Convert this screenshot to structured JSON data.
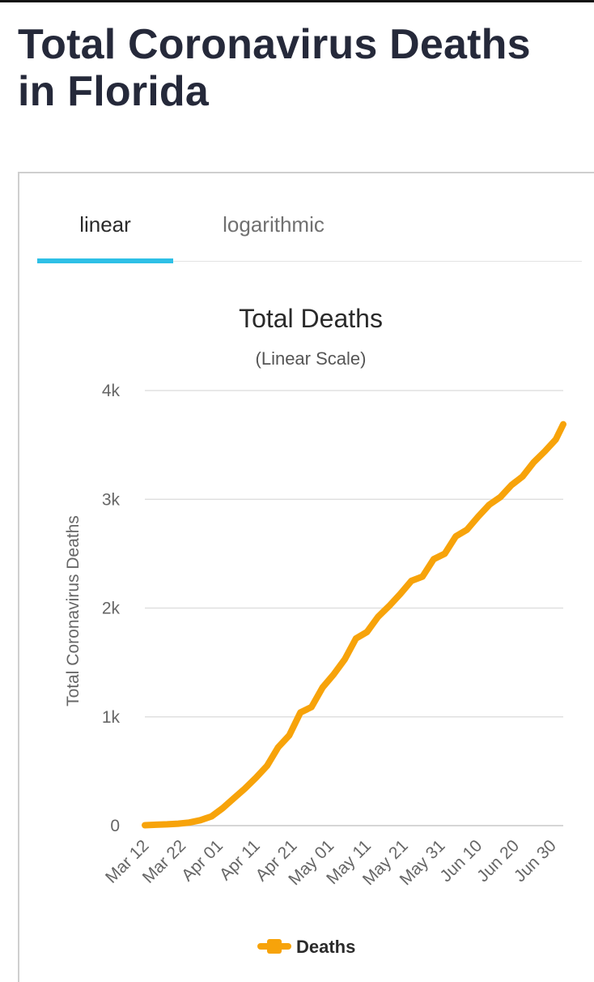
{
  "page": {
    "title": "Total Coronavirus Deaths in Florida"
  },
  "tabs": [
    {
      "label": "linear",
      "active": true
    },
    {
      "label": "logarithmic",
      "active": false
    }
  ],
  "colors": {
    "accent": "#2ec0e6",
    "series": "#f7a30a",
    "grid": "#e0e0e0"
  },
  "chart_data": {
    "type": "line",
    "title": "Total Deaths",
    "subtitle": "(Linear Scale)",
    "xlabel": "",
    "ylabel": "Total Coronavirus Deaths",
    "ylim": [
      0,
      4000
    ],
    "yticks": [
      {
        "value": 0,
        "label": "0"
      },
      {
        "value": 1000,
        "label": "1k"
      },
      {
        "value": 2000,
        "label": "2k"
      },
      {
        "value": 3000,
        "label": "3k"
      },
      {
        "value": 4000,
        "label": "4k"
      }
    ],
    "xticks": [
      "Mar 12",
      "Mar 22",
      "Apr 01",
      "Apr 11",
      "Apr 21",
      "May 01",
      "May 11",
      "May 21",
      "May 31",
      "Jun 10",
      "Jun 20",
      "Jun 30"
    ],
    "grid": true,
    "legend": "bottom-center",
    "series": [
      {
        "name": "Deaths",
        "x": [
          "Mar 12",
          "Mar 15",
          "Mar 18",
          "Mar 21",
          "Mar 24",
          "Mar 27",
          "Mar 30",
          "Apr 02",
          "Apr 05",
          "Apr 08",
          "Apr 11",
          "Apr 14",
          "Apr 17",
          "Apr 20",
          "Apr 23",
          "Apr 26",
          "Apr 29",
          "May 02",
          "May 05",
          "May 08",
          "May 11",
          "May 14",
          "May 17",
          "May 20",
          "May 23",
          "May 26",
          "May 29",
          "Jun 01",
          "Jun 04",
          "Jun 07",
          "Jun 10",
          "Jun 13",
          "Jun 16",
          "Jun 19",
          "Jun 22",
          "Jun 25",
          "Jun 28",
          "Jul 01",
          "Jul 03"
        ],
        "values": [
          4,
          8,
          12,
          18,
          28,
          50,
          85,
          160,
          250,
          340,
          440,
          550,
          720,
          830,
          1040,
          1090,
          1270,
          1390,
          1530,
          1720,
          1780,
          1920,
          2020,
          2130,
          2250,
          2290,
          2450,
          2500,
          2660,
          2720,
          2840,
          2950,
          3020,
          3130,
          3210,
          3340,
          3440,
          3550,
          3690
        ]
      }
    ]
  }
}
